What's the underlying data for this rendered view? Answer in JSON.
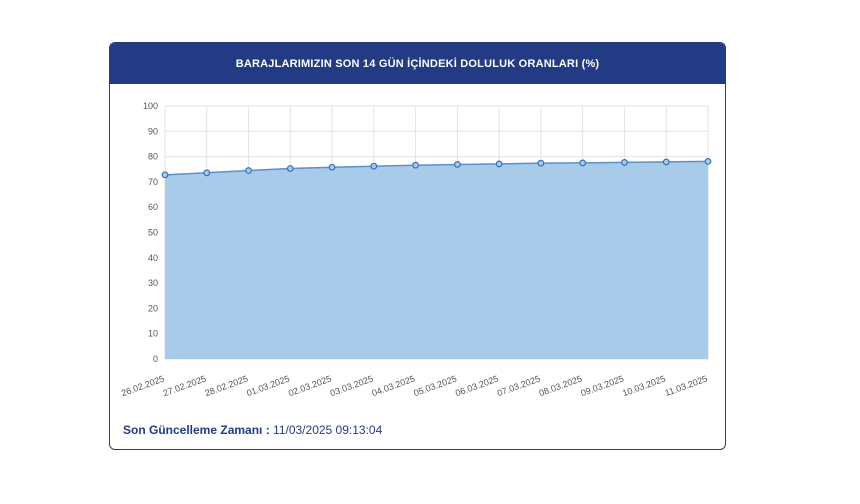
{
  "header": {
    "title": "BARAJLARIMIZIN SON 14 GÜN İÇİNDEKİ DOLULUK ORANLARI (%)"
  },
  "footer": {
    "label": "Son Güncelleme Zamanı :",
    "value": "11/03/2025 09:13:04"
  },
  "colors": {
    "header_bg": "#233a85",
    "area_fill": "#a9cbea",
    "line": "#5b8fcf",
    "grid": "#e3e3e3"
  },
  "chart_data": {
    "type": "area",
    "title": "BARAJLARIMIZIN SON 14 GÜN İÇİNDEKİ DOLULUK ORANLARI (%)",
    "xlabel": "",
    "ylabel": "",
    "ylim": [
      0,
      100
    ],
    "yticks": [
      0,
      10,
      20,
      30,
      40,
      50,
      60,
      70,
      80,
      90,
      100
    ],
    "grid": true,
    "categories": [
      "26.02.2025",
      "27.02.2025",
      "28.02.2025",
      "01.03.2025",
      "02.03.2025",
      "03.03.2025",
      "04.03.2025",
      "05.03.2025",
      "06.03.2025",
      "07.03.2025",
      "08.03.2025",
      "09.03.2025",
      "10.03.2025",
      "11.03.2025"
    ],
    "values": [
      72.8,
      73.6,
      74.5,
      75.3,
      75.8,
      76.2,
      76.6,
      76.9,
      77.1,
      77.4,
      77.5,
      77.7,
      77.9,
      78.1
    ]
  }
}
